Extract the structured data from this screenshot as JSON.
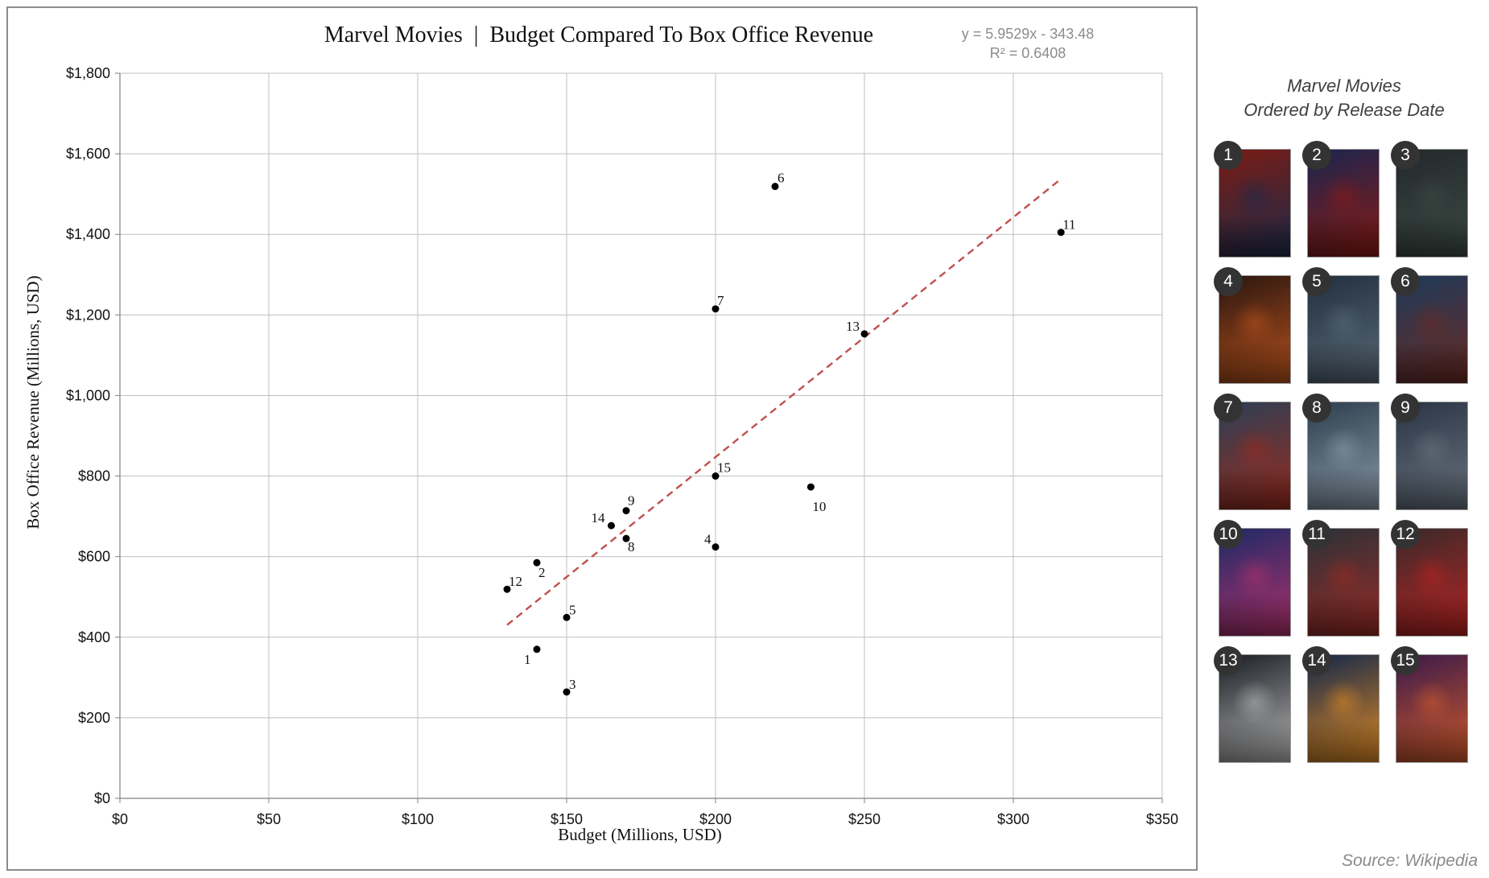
{
  "chart_data": {
    "type": "scatter",
    "title": "Marvel Movies  |  Budget Compared To Box Office Revenue",
    "xlabel": "Budget (Millions, USD)",
    "ylabel": "Box Office Revenue (Millions, USD)",
    "xlim": [
      0,
      350
    ],
    "ylim": [
      0,
      1800
    ],
    "x_ticks": [
      0,
      50,
      100,
      150,
      200,
      250,
      300,
      350
    ],
    "x_tick_labels": [
      "$0",
      "$50",
      "$100",
      "$150",
      "$200",
      "$250",
      "$300",
      "$350"
    ],
    "y_ticks": [
      0,
      200,
      400,
      600,
      800,
      1000,
      1200,
      1400,
      1600,
      1800
    ],
    "y_tick_labels": [
      "$0",
      "$200",
      "$400",
      "$600",
      "$800",
      "$1,000",
      "$1,200",
      "$1,400",
      "$1,600",
      "$1,800"
    ],
    "grid": true,
    "points": [
      {
        "label": "1",
        "x": 140,
        "y": 370
      },
      {
        "label": "2",
        "x": 140,
        "y": 585
      },
      {
        "label": "3",
        "x": 150,
        "y": 264
      },
      {
        "label": "4",
        "x": 200,
        "y": 624
      },
      {
        "label": "5",
        "x": 150,
        "y": 449
      },
      {
        "label": "6",
        "x": 220,
        "y": 1519
      },
      {
        "label": "7",
        "x": 200,
        "y": 1215
      },
      {
        "label": "8",
        "x": 170,
        "y": 645
      },
      {
        "label": "9",
        "x": 170,
        "y": 714
      },
      {
        "label": "10",
        "x": 232,
        "y": 773
      },
      {
        "label": "11",
        "x": 316,
        "y": 1405
      },
      {
        "label": "12",
        "x": 130,
        "y": 519
      },
      {
        "label": "13",
        "x": 250,
        "y": 1153
      },
      {
        "label": "14",
        "x": 165,
        "y": 677
      },
      {
        "label": "15",
        "x": 200,
        "y": 800
      }
    ],
    "trendline": {
      "slope": 5.9529,
      "intercept": -343.48,
      "x_range": [
        130,
        316
      ],
      "equation": "y = 5.9529x - 343.48",
      "r_squared": "R² = 0.6408",
      "color": "#c0504d",
      "style": "dashed"
    },
    "point_color": "#000000",
    "grid_color": "#bfbfbf"
  },
  "sidebar": {
    "title_line1": "Marvel Movies",
    "title_line2": "Ordered by Release Date",
    "posters": [
      {
        "number": "1",
        "colors": [
          "#7a1c14",
          "#1d2a4a"
        ]
      },
      {
        "number": "2",
        "colors": [
          "#1a2550",
          "#8a1a12"
        ]
      },
      {
        "number": "3",
        "colors": [
          "#24282c",
          "#3c4a44"
        ]
      },
      {
        "number": "4",
        "colors": [
          "#2a1610",
          "#b8521c"
        ]
      },
      {
        "number": "5",
        "colors": [
          "#22303e",
          "#5a6a78"
        ]
      },
      {
        "number": "6",
        "colors": [
          "#1e3a5a",
          "#6a2a22"
        ]
      },
      {
        "number": "7",
        "colors": [
          "#2c3f55",
          "#9a2a1c"
        ]
      },
      {
        "number": "8",
        "colors": [
          "#2e3e4e",
          "#8a9aa8"
        ]
      },
      {
        "number": "9",
        "colors": [
          "#2a3444",
          "#6a7480"
        ]
      },
      {
        "number": "10",
        "colors": [
          "#1e2a66",
          "#b0306a"
        ]
      },
      {
        "number": "11",
        "colors": [
          "#2a3238",
          "#9a2a24"
        ]
      },
      {
        "number": "12",
        "colors": [
          "#3a2a2a",
          "#b82222"
        ]
      },
      {
        "number": "13",
        "colors": [
          "#1a1e24",
          "#b8b8b8"
        ]
      },
      {
        "number": "14",
        "colors": [
          "#14284a",
          "#e08a24"
        ]
      },
      {
        "number": "15",
        "colors": [
          "#3a1a4a",
          "#d05a2a"
        ]
      }
    ]
  },
  "source_note": "Source: Wikipedia"
}
